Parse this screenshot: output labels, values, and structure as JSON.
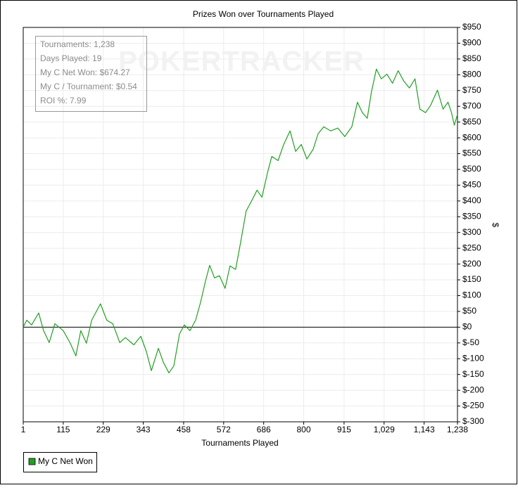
{
  "chart_data": {
    "type": "line",
    "title": "Prizes Won over Tournaments Played",
    "x_label": "Tournaments Played",
    "y_label": "$",
    "watermark": "POKERTRACKER",
    "info_box": [
      "Tournaments: 1,238",
      "Days Played: 19",
      "My C Net Won: $674.27",
      "My C / Tournament: $0.54",
      "ROI %: 7.99"
    ],
    "grid": true,
    "legend": "bottom-left",
    "x": [
      1,
      11,
      25,
      45,
      59,
      75,
      91,
      115,
      135,
      151,
      165,
      181,
      196,
      221,
      239,
      256,
      276,
      292,
      316,
      336,
      352,
      366,
      386,
      400,
      416,
      430,
      446,
      460,
      476,
      492,
      506,
      520,
      532,
      546,
      560,
      576,
      590,
      606,
      620,
      636,
      652,
      667,
      681,
      697,
      709,
      727,
      743,
      761,
      777,
      793,
      809,
      827,
      841,
      857,
      877,
      897,
      917,
      937,
      953,
      967,
      981,
      993,
      1007,
      1021,
      1037,
      1053,
      1069,
      1085,
      1101,
      1117,
      1131,
      1147,
      1161,
      1181,
      1197,
      1211,
      1221,
      1229,
      1238
    ],
    "series": [
      {
        "name": "My C Net Won",
        "color": "#22a022",
        "values": [
          0,
          22,
          7,
          45,
          -11,
          -49,
          11,
          -11,
          -51,
          -91,
          -11,
          -51,
          22,
          74,
          22,
          11,
          -49,
          -33,
          -56,
          -29,
          -78,
          -138,
          -67,
          -111,
          -145,
          -123,
          -22,
          7,
          -11,
          22,
          78,
          145,
          196,
          156,
          163,
          123,
          194,
          183,
          267,
          368,
          401,
          434,
          412,
          490,
          541,
          528,
          579,
          622,
          557,
          579,
          533,
          564,
          613,
          635,
          622,
          631,
          604,
          635,
          713,
          680,
          662,
          746,
          818,
          787,
          802,
          773,
          813,
          780,
          758,
          787,
          691,
          680,
          702,
          751,
          691,
          713,
          680,
          640,
          674.27
        ]
      }
    ],
    "xlim": [
      1,
      1238
    ],
    "xticks": [
      1,
      115,
      229,
      343,
      458,
      572,
      686,
      800,
      915,
      {
        "value": 1029,
        "label": "1,029"
      },
      {
        "value": 1143,
        "label": "1,143"
      },
      {
        "value": 1238,
        "label": "1,238"
      }
    ],
    "ylim": [
      -300,
      950
    ],
    "yticks": [
      {
        "value": -300,
        "label": "$-300"
      },
      {
        "value": -250,
        "label": "$-250"
      },
      {
        "value": -200,
        "label": "$-200"
      },
      {
        "value": -150,
        "label": "$-150"
      },
      {
        "value": -100,
        "label": "$-100"
      },
      {
        "value": -50,
        "label": "$-50"
      },
      {
        "value": 0,
        "label": "$0"
      },
      {
        "value": 50,
        "label": "$50"
      },
      {
        "value": 100,
        "label": "$100"
      },
      {
        "value": 150,
        "label": "$150"
      },
      {
        "value": 200,
        "label": "$200"
      },
      {
        "value": 250,
        "label": "$250"
      },
      {
        "value": 300,
        "label": "$300"
      },
      {
        "value": 350,
        "label": "$350"
      },
      {
        "value": 400,
        "label": "$400"
      },
      {
        "value": 450,
        "label": "$450"
      },
      {
        "value": 500,
        "label": "$500"
      },
      {
        "value": 550,
        "label": "$550"
      },
      {
        "value": 600,
        "label": "$600"
      },
      {
        "value": 650,
        "label": "$650"
      },
      {
        "value": 700,
        "label": "$700"
      },
      {
        "value": 750,
        "label": "$750"
      },
      {
        "value": 800,
        "label": "$800"
      },
      {
        "value": 850,
        "label": "$850"
      },
      {
        "value": 900,
        "label": "$900"
      },
      {
        "value": 950,
        "label": "$950"
      }
    ]
  }
}
